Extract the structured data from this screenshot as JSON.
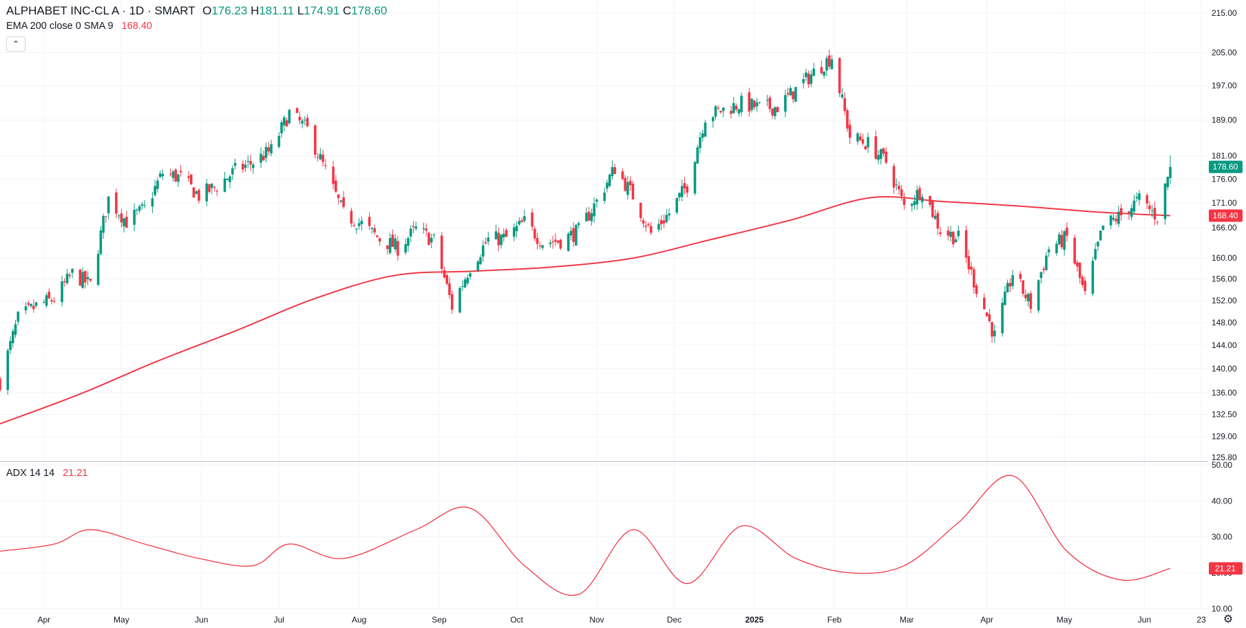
{
  "symbol": {
    "name": "ALPHABET INC-CL A",
    "sep": "·",
    "interval": "1D",
    "exchange": "SMART",
    "open_label": "O",
    "open": "176.23",
    "high_label": "H",
    "high": "181.11",
    "low_label": "L",
    "low": "174.91",
    "close_label": "C",
    "close": "178.60"
  },
  "indicators": {
    "ema_label": "EMA 200 close 0 SMA 9",
    "ema_value": "168.40",
    "adx_label": "ADX 14 14",
    "adx_value": "21.21"
  },
  "price_pill": "178.60",
  "ema_pill": "168.40",
  "adx_pill": "21.21",
  "collapse_icon": "chevron-up-icon",
  "settings_icon": "gear-icon",
  "colors": {
    "up": "#089981",
    "down": "#f23645",
    "ema": "#f23645",
    "adx": "#f23645",
    "grid": "#f0f3fa"
  },
  "chart_data": [
    {
      "type": "candlestick",
      "title": "ALPHABET INC-CL A · 1D · SMART",
      "price_axis_ticks": [
        "215.00",
        "205.00",
        "197.00",
        "189.00",
        "181.00",
        "176.00",
        "171.00",
        "166.00",
        "160.00",
        "156.00",
        "152.00",
        "148.00",
        "144.00",
        "140.00",
        "136.00",
        "132.50",
        "129.00",
        "125.80"
      ],
      "scale": "log",
      "ylim": [
        125.8,
        217
      ],
      "time_axis_ticks": [
        "Apr",
        "May",
        "Jun",
        "Jul",
        "Aug",
        "Sep",
        "Oct",
        "Nov",
        "Dec",
        "2025",
        "Feb",
        "Mar",
        "Apr",
        "May",
        "Jun",
        "23"
      ],
      "weekly_close": [
        [
          "2024-03-15",
          137.8
        ],
        [
          "2024-03-22",
          148.7
        ],
        [
          "2024-03-29",
          151.0
        ],
        [
          "2024-04-05",
          152.3
        ],
        [
          "2024-04-12",
          157.0
        ],
        [
          "2024-04-19",
          154.9
        ],
        [
          "2024-04-26",
          171.9
        ],
        [
          "2024-05-03",
          167.2
        ],
        [
          "2024-05-10",
          169.8
        ],
        [
          "2024-05-17",
          177.3
        ],
        [
          "2024-05-24",
          176.3
        ],
        [
          "2024-05-31",
          172.5
        ],
        [
          "2024-06-07",
          174.5
        ],
        [
          "2024-06-14",
          177.8
        ],
        [
          "2024-06-21",
          179.6
        ],
        [
          "2024-06-28",
          182.2
        ],
        [
          "2024-07-05",
          190.6
        ],
        [
          "2024-07-12",
          186.8
        ],
        [
          "2024-07-19",
          177.7
        ],
        [
          "2024-07-26",
          168.7
        ],
        [
          "2024-08-02",
          166.7
        ],
        [
          "2024-08-09",
          163.7
        ],
        [
          "2024-08-16",
          162.0
        ],
        [
          "2024-08-23",
          165.6
        ],
        [
          "2024-08-30",
          163.4
        ],
        [
          "2024-09-06",
          150.9
        ],
        [
          "2024-09-13",
          158.4
        ],
        [
          "2024-09-20",
          163.6
        ],
        [
          "2024-09-27",
          163.9
        ],
        [
          "2024-10-04",
          167.1
        ],
        [
          "2024-10-11",
          163.1
        ],
        [
          "2024-10-18",
          163.4
        ],
        [
          "2024-10-25",
          165.3
        ],
        [
          "2024-11-01",
          171.3
        ],
        [
          "2024-11-08",
          178.4
        ],
        [
          "2024-11-15",
          172.5
        ],
        [
          "2024-11-22",
          164.8
        ],
        [
          "2024-11-29",
          168.9
        ],
        [
          "2024-12-06",
          174.7
        ],
        [
          "2024-12-13",
          189.8
        ],
        [
          "2024-12-20",
          191.4
        ],
        [
          "2024-12-27",
          192.8
        ],
        [
          "2025-01-03",
          191.8
        ],
        [
          "2025-01-10",
          192.0
        ],
        [
          "2025-01-17",
          196.0
        ],
        [
          "2025-01-24",
          200.2
        ],
        [
          "2025-01-31",
          204.0
        ],
        [
          "2025-02-07",
          185.3
        ],
        [
          "2025-02-14",
          183.6
        ],
        [
          "2025-02-21",
          179.7
        ],
        [
          "2025-02-28",
          170.3
        ],
        [
          "2025-03-07",
          173.9
        ],
        [
          "2025-03-14",
          165.5
        ],
        [
          "2025-03-21",
          163.9
        ],
        [
          "2025-03-28",
          154.3
        ],
        [
          "2025-04-04",
          145.6
        ],
        [
          "2025-04-11",
          157.1
        ],
        [
          "2025-04-18",
          151.2
        ],
        [
          "2025-04-25",
          161.9
        ],
        [
          "2025-05-02",
          164.0
        ],
        [
          "2025-05-09",
          152.8
        ],
        [
          "2025-05-16",
          166.2
        ],
        [
          "2025-05-23",
          168.5
        ],
        [
          "2025-05-30",
          171.7
        ],
        [
          "2025-06-06",
          168.1
        ],
        [
          "2025-06-11",
          178.6
        ]
      ]
    },
    {
      "type": "line",
      "series": [
        {
          "name": "EMA 200 close 0 SMA 9",
          "last": 168.4
        }
      ],
      "x": [
        "2024-03-15",
        "2024-04-15",
        "2024-05-15",
        "2024-06-15",
        "2024-07-15",
        "2024-08-15",
        "2024-09-15",
        "2024-10-15",
        "2024-11-15",
        "2024-12-15",
        "2025-01-15",
        "2025-02-15",
        "2025-03-15",
        "2025-04-15",
        "2025-05-15",
        "2025-06-11"
      ],
      "values": [
        131.0,
        135.8,
        141.3,
        146.7,
        152.4,
        156.7,
        157.5,
        158.3,
        160.0,
        163.6,
        167.5,
        172.1,
        171.3,
        170.3,
        169.1,
        168.4
      ]
    },
    {
      "type": "line",
      "series": [
        {
          "name": "ADX 14 14",
          "last": 21.21
        }
      ],
      "ylim": [
        10,
        50
      ],
      "axis_ticks": [
        "50.00",
        "40.00",
        "30.00",
        "20.00",
        "10.00"
      ],
      "x": [
        "2024-03-15",
        "2024-04-05",
        "2024-04-19",
        "2024-05-10",
        "2024-05-31",
        "2024-06-21",
        "2024-07-05",
        "2024-07-26",
        "2024-08-23",
        "2024-09-13",
        "2024-10-04",
        "2024-10-25",
        "2024-11-15",
        "2024-12-06",
        "2024-12-27",
        "2025-01-17",
        "2025-02-07",
        "2025-02-28",
        "2025-03-21",
        "2025-04-11",
        "2025-05-02",
        "2025-05-23",
        "2025-06-11"
      ],
      "values": [
        26,
        28,
        32,
        28,
        24,
        22,
        28,
        24,
        32,
        38,
        22,
        14,
        32,
        17,
        33,
        24,
        20,
        22,
        34,
        47,
        26,
        18,
        21.21
      ]
    }
  ]
}
